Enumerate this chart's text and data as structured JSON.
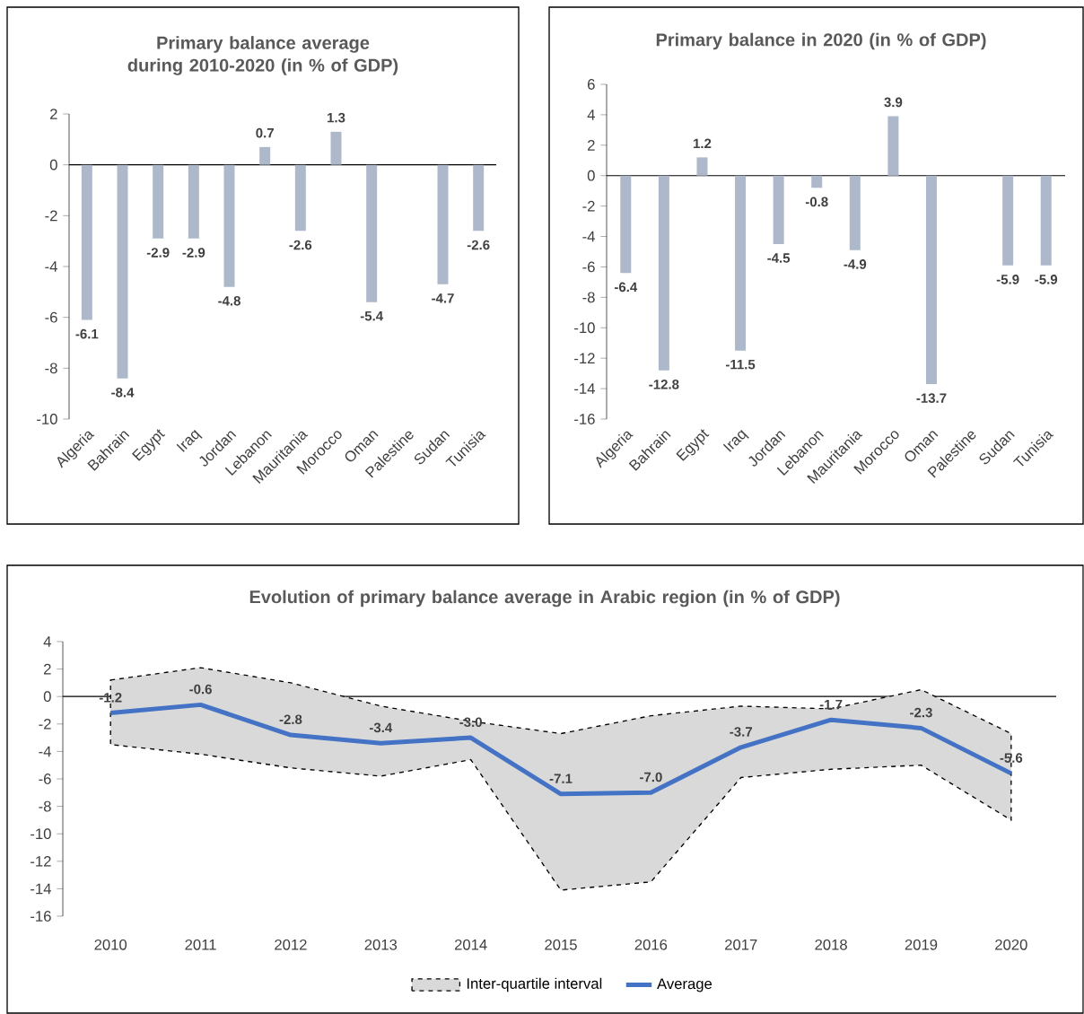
{
  "chart_data": [
    {
      "type": "bar",
      "title": "Primary balance average during 2010-2020 (in % of GDP)",
      "categories": [
        "Algeria",
        "Bahrain",
        "Egypt",
        "Iraq",
        "Jordan",
        "Lebanon",
        "Mauritania",
        "Morocco",
        "Oman",
        "Palestine",
        "Sudan",
        "Tunisia"
      ],
      "values": [
        -6.1,
        -8.4,
        -2.9,
        -2.9,
        -4.8,
        0.7,
        -2.6,
        1.3,
        -5.4,
        null,
        -4.7,
        -2.6
      ],
      "color": "#adb9ca",
      "ylim": [
        -10,
        2
      ],
      "yticks": [
        -10,
        -8,
        -6,
        -4,
        -2,
        0,
        2
      ],
      "data_labels": true
    },
    {
      "type": "bar",
      "title": "Primary balance in 2020 (in % of GDP)",
      "categories": [
        "Algeria",
        "Bahrain",
        "Egypt",
        "Iraq",
        "Jordan",
        "Lebanon",
        "Mauritania",
        "Morocco",
        "Oman",
        "Palestine",
        "Sudan",
        "Tunisia"
      ],
      "values": [
        -6.4,
        -12.8,
        1.2,
        -11.5,
        -4.5,
        -0.8,
        -4.9,
        3.9,
        -13.7,
        null,
        -5.9,
        -5.9
      ],
      "color": "#adb9ca",
      "ylim": [
        -16,
        6
      ],
      "yticks": [
        -16,
        -14,
        -12,
        -10,
        -8,
        -6,
        -4,
        -2,
        0,
        2,
        4,
        6
      ],
      "data_labels": true
    },
    {
      "type": "line",
      "title": "Evolution of primary balance average in Arabic region (in % of GDP)",
      "categories": [
        "2010",
        "2011",
        "2012",
        "2013",
        "2014",
        "2015",
        "2016",
        "2017",
        "2018",
        "2019",
        "2020"
      ],
      "ylim": [
        -16,
        4
      ],
      "yticks": [
        -16,
        -14,
        -12,
        -10,
        -8,
        -6,
        -4,
        -2,
        0,
        2,
        4
      ],
      "legend": "bottom",
      "annotations": [
        "Inter-quartile interval"
      ],
      "series": [
        {
          "name": "Average",
          "color": "#4472c4",
          "line_style": "solid",
          "lower": [
            -3.5,
            -4.2,
            -5.2,
            -5.8,
            -4.6,
            -14.1,
            -13.5,
            -5.9,
            -5.3,
            -5.0,
            -9.0
          ],
          "upper": [
            1.2,
            2.1,
            1.0,
            -0.7,
            -1.8,
            -2.7,
            -1.4,
            -0.7,
            -0.9,
            0.5,
            -2.7
          ],
          "values": [
            -1.2,
            -0.6,
            -2.8,
            -3.4,
            -3.0,
            -7.1,
            -7.0,
            -3.7,
            -1.7,
            -2.3,
            -5.6
          ],
          "value_labels": [
            "-1.2",
            "-0.6",
            "-2.8",
            "-3.4",
            "-3.0",
            "-7.1",
            "-7.0",
            "-3.7",
            "-1.7",
            "-2.3",
            "-5.6"
          ]
        }
      ]
    }
  ]
}
